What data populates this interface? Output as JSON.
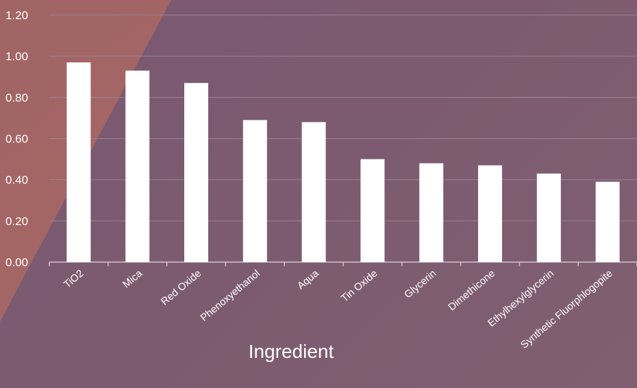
{
  "chart_data": {
    "type": "bar",
    "title": "",
    "xlabel": "Ingredient",
    "ylabel": "",
    "categories": [
      "TiO2",
      "Mica",
      "Red Oxide",
      "Phenoxyethanol",
      "Aqua",
      "Tin Oxide",
      "Glycerin",
      "Dimethicone",
      "Ethylhexylglycerin",
      "Synthetic Fluorphlogopite"
    ],
    "values": [
      0.97,
      0.93,
      0.87,
      0.69,
      0.68,
      0.5,
      0.48,
      0.47,
      0.43,
      0.39
    ],
    "ylim": [
      0,
      1.2
    ],
    "yticks": [
      "0.00",
      "0.20",
      "0.40",
      "0.60",
      "0.80",
      "1.00",
      "1.20"
    ],
    "grid": true,
    "legend": "none"
  },
  "colors": {
    "bar": "#ffffff",
    "grid": "#9a8294",
    "axis": "#cfc3cc",
    "background": "#7c5b70",
    "accent_triangle": "#b06a62"
  }
}
